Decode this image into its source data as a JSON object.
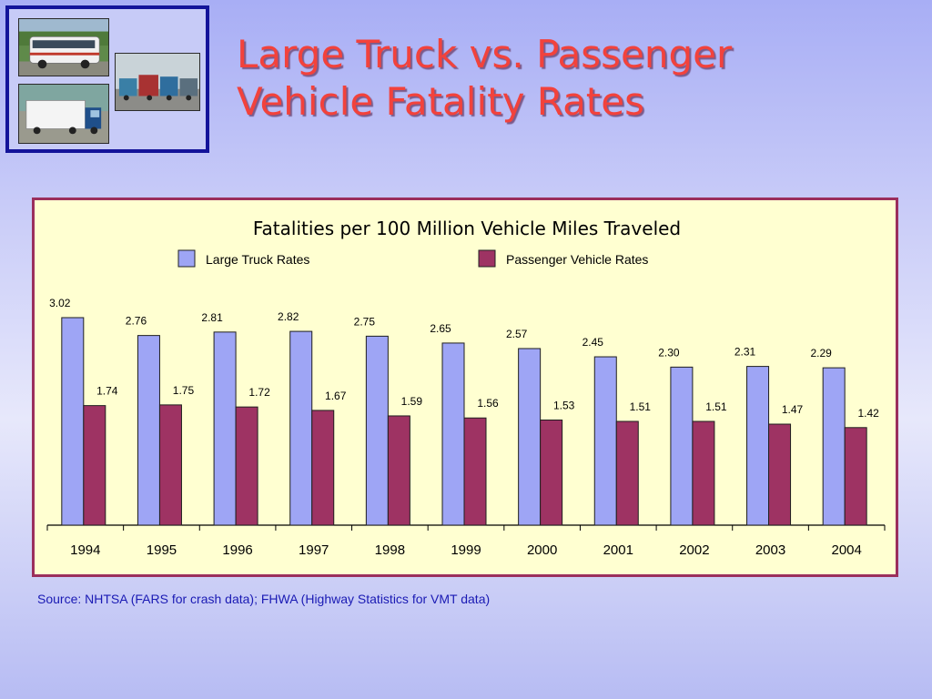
{
  "slide": {
    "title_line1": "Large Truck vs. Passenger",
    "title_line2": "Vehicle Fatality Rates",
    "source": "Source: NHTSA (FARS for crash data); FHWA (Highway Statistics for VMT data)",
    "photos": [
      "tour-bus-photo",
      "parked-trucks-photo",
      "semi-truck-photo"
    ]
  },
  "colors": {
    "title": "#f2423c",
    "frame": "#13139a",
    "panel_border": "#9b2f5c",
    "panel_bg": "#ffffd1",
    "truck": "#9ea5f5",
    "passenger": "#9e3363"
  },
  "chart_data": {
    "type": "bar",
    "title": "Fatalities per 100 Million Vehicle Miles Traveled",
    "xlabel": "",
    "ylabel": "",
    "grid": false,
    "legend_position": "top",
    "categories": [
      "1994",
      "1995",
      "1996",
      "1997",
      "1998",
      "1999",
      "2000",
      "2001",
      "2002",
      "2003",
      "2004"
    ],
    "ylim": [
      0,
      3.4
    ],
    "series": [
      {
        "name": "Large Truck Rates",
        "color": "#9ea5f5",
        "values": [
          3.02,
          2.76,
          2.81,
          2.82,
          2.75,
          2.65,
          2.57,
          2.45,
          2.3,
          2.31,
          2.29
        ],
        "labels": [
          "3.02",
          "2.76",
          "2.81",
          "2.82",
          "2.75",
          "2.65",
          "2.57",
          "2.45",
          "2.30",
          "2.31",
          "2.29"
        ]
      },
      {
        "name": "Passenger Vehicle Rates",
        "color": "#9e3363",
        "values": [
          1.74,
          1.75,
          1.72,
          1.67,
          1.59,
          1.56,
          1.53,
          1.51,
          1.51,
          1.47,
          1.42
        ],
        "labels": [
          "1.74",
          "1.75",
          "1.72",
          "1.67",
          "1.59",
          "1.56",
          "1.53",
          "1.51",
          "1.51",
          "1.47",
          "1.42"
        ]
      }
    ]
  }
}
